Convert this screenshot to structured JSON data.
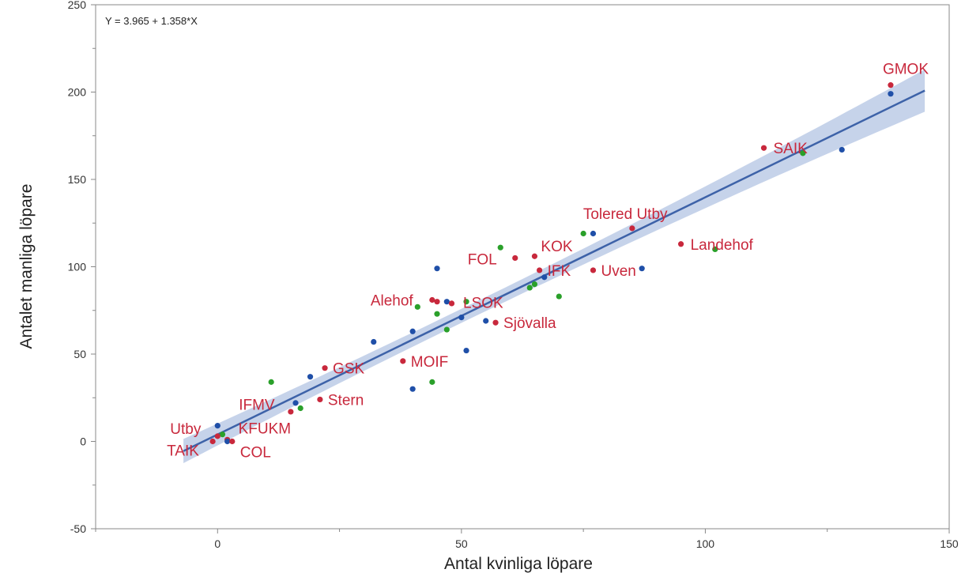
{
  "chart_data": {
    "type": "scatter",
    "title": "",
    "xlabel": "Antal kvinliga löpare",
    "ylabel": "Antalet manliga löpare",
    "xlim": [
      -25,
      150
    ],
    "ylim": [
      -50,
      250
    ],
    "xticks": [
      0,
      50,
      100,
      150
    ],
    "yticks": [
      -50,
      0,
      50,
      100,
      150,
      200,
      250
    ],
    "grid": false,
    "regression": {
      "equation": "Y = 3.965 + 1.358*X",
      "intercept": 3.965,
      "slope": 1.358,
      "x_range": [
        -7,
        145
      ]
    },
    "colors": {
      "red": "#c8283c",
      "blue": "#1f4fa8",
      "green": "#2aa02a",
      "line": "#3d62a8",
      "band": "#bccbe6",
      "label": "#c8283c"
    },
    "points": [
      {
        "x": 138,
        "y": 204,
        "color": "red",
        "label": "GMOK"
      },
      {
        "x": 138,
        "y": 199,
        "color": "blue"
      },
      {
        "x": 112,
        "y": 168,
        "color": "red",
        "label": "SAIK"
      },
      {
        "x": 120,
        "y": 165,
        "color": "green"
      },
      {
        "x": 128,
        "y": 167,
        "color": "blue"
      },
      {
        "x": 85,
        "y": 122,
        "color": "red",
        "label": "Tolered Utby"
      },
      {
        "x": 75,
        "y": 119,
        "color": "green"
      },
      {
        "x": 77,
        "y": 119,
        "color": "blue"
      },
      {
        "x": 95,
        "y": 113,
        "color": "red",
        "label": "Landehof"
      },
      {
        "x": 102,
        "y": 110,
        "color": "green"
      },
      {
        "x": 87,
        "y": 99,
        "color": "blue"
      },
      {
        "x": 65,
        "y": 106,
        "color": "red",
        "label": "KOK"
      },
      {
        "x": 61,
        "y": 105,
        "color": "red",
        "label": "FOL"
      },
      {
        "x": 58,
        "y": 111,
        "color": "green"
      },
      {
        "x": 66,
        "y": 98,
        "color": "red",
        "label": "IFK"
      },
      {
        "x": 67,
        "y": 94,
        "color": "blue"
      },
      {
        "x": 77,
        "y": 98,
        "color": "red",
        "label": "Uven"
      },
      {
        "x": 64,
        "y": 88,
        "color": "green"
      },
      {
        "x": 65,
        "y": 90,
        "color": "green"
      },
      {
        "x": 70,
        "y": 83,
        "color": "green"
      },
      {
        "x": 45,
        "y": 99,
        "color": "blue"
      },
      {
        "x": 44,
        "y": 81,
        "color": "red",
        "label": "Alehof"
      },
      {
        "x": 45,
        "y": 80,
        "color": "red"
      },
      {
        "x": 47,
        "y": 80,
        "color": "blue"
      },
      {
        "x": 48,
        "y": 79,
        "color": "red"
      },
      {
        "x": 41,
        "y": 77,
        "color": "green"
      },
      {
        "x": 51,
        "y": 80,
        "color": "green",
        "label": "LSOK"
      },
      {
        "x": 45,
        "y": 73,
        "color": "green"
      },
      {
        "x": 50,
        "y": 71,
        "color": "blue"
      },
      {
        "x": 57,
        "y": 68,
        "color": "red",
        "label": "Sjövalla"
      },
      {
        "x": 55,
        "y": 69,
        "color": "blue"
      },
      {
        "x": 40,
        "y": 63,
        "color": "blue"
      },
      {
        "x": 47,
        "y": 64,
        "color": "green"
      },
      {
        "x": 32,
        "y": 57,
        "color": "blue"
      },
      {
        "x": 51,
        "y": 52,
        "color": "blue"
      },
      {
        "x": 38,
        "y": 46,
        "color": "red",
        "label": "MOIF"
      },
      {
        "x": 22,
        "y": 42,
        "color": "red",
        "label": "GSK"
      },
      {
        "x": 19,
        "y": 37,
        "color": "blue"
      },
      {
        "x": 11,
        "y": 34,
        "color": "green"
      },
      {
        "x": 44,
        "y": 34,
        "color": "green"
      },
      {
        "x": 40,
        "y": 30,
        "color": "blue"
      },
      {
        "x": 21,
        "y": 24,
        "color": "red",
        "label": "Stern"
      },
      {
        "x": 16,
        "y": 22,
        "color": "blue"
      },
      {
        "x": 17,
        "y": 19,
        "color": "green",
        "label": "IFMV"
      },
      {
        "x": 15,
        "y": 17,
        "color": "red"
      },
      {
        "x": 0,
        "y": 9,
        "color": "blue"
      },
      {
        "x": 1,
        "y": 4,
        "color": "green"
      },
      {
        "x": 0,
        "y": 3,
        "color": "red",
        "label": "Utby"
      },
      {
        "x": 2,
        "y": 1,
        "color": "red",
        "label": "KFUKM"
      },
      {
        "x": 2,
        "y": 0,
        "color": "blue"
      },
      {
        "x": 3,
        "y": 0,
        "color": "red",
        "label": "COL"
      },
      {
        "x": -1,
        "y": 0,
        "color": "red",
        "label": "TAIK"
      }
    ]
  }
}
